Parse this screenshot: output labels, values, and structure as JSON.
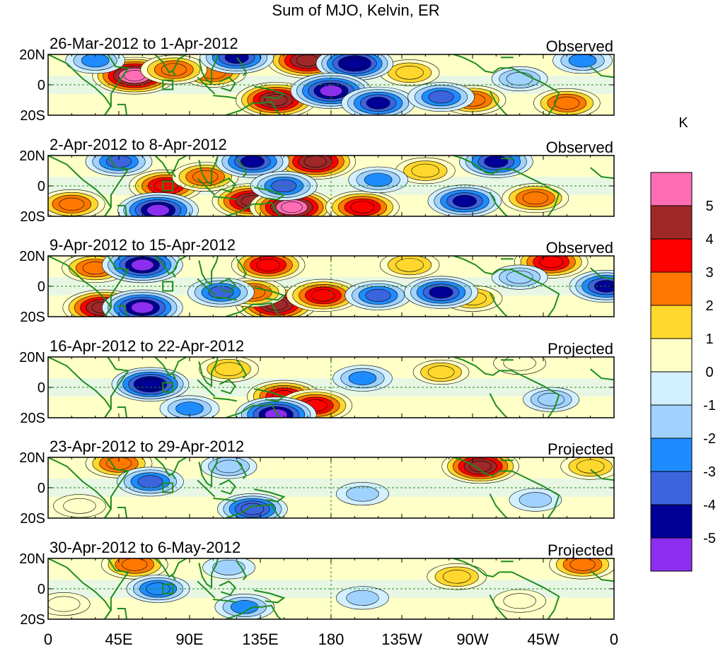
{
  "title": "Sum of MJO, Kelvin, ER",
  "chart_data": {
    "type": "heatmap",
    "title": "Sum of MJO, Kelvin, ER",
    "colorbar": {
      "unit": "K",
      "tick_labels": [
        "5",
        "4",
        "3",
        "2",
        "1",
        "0",
        "-1",
        "-2",
        "-3",
        "-4",
        "-5"
      ],
      "colors_top_to_bottom": [
        "#ff6eb4",
        "#a02828",
        "#ff0000",
        "#ff7800",
        "#ffd72d",
        "#ffffc8",
        "#d2f0ff",
        "#a0d2ff",
        "#1e8cff",
        "#3c64dc",
        "#000096",
        "#8c2ef0"
      ]
    },
    "x_tick_labels": [
      "0",
      "45E",
      "90E",
      "135E",
      "180",
      "135W",
      "90W",
      "45W",
      "0"
    ],
    "y_tick_labels": [
      "20N",
      "0",
      "20S"
    ],
    "panels": [
      {
        "period": "26-Mar-2012 to 1-Apr-2012",
        "kind": "Observed",
        "features": [
          {
            "lon": 55,
            "lat": 6,
            "value": 5.5
          },
          {
            "lon": 105,
            "lat": 8,
            "value": 3
          },
          {
            "lon": 165,
            "lat": 16,
            "value": 5
          },
          {
            "lon": 145,
            "lat": -10,
            "value": 5
          },
          {
            "lon": 80,
            "lat": 10,
            "value": 3
          },
          {
            "lon": 230,
            "lat": 8,
            "value": 2
          },
          {
            "lon": 270,
            "lat": -10,
            "value": 3
          },
          {
            "lon": 330,
            "lat": -12,
            "value": 3
          },
          {
            "lon": 195,
            "lat": 14,
            "value": -4.5
          },
          {
            "lon": 120,
            "lat": 18,
            "value": -4
          },
          {
            "lon": 180,
            "lat": -4,
            "value": -5
          },
          {
            "lon": 210,
            "lat": -12,
            "value": -4
          },
          {
            "lon": 250,
            "lat": -8,
            "value": -3
          },
          {
            "lon": 30,
            "lat": 16,
            "value": -2
          },
          {
            "lon": 340,
            "lat": 16,
            "value": -2
          },
          {
            "lon": 300,
            "lat": 4,
            "value": -1.5
          }
        ]
      },
      {
        "period": "2-Apr-2012 to 8-Apr-2012",
        "kind": "Observed",
        "features": [
          {
            "lon": 75,
            "lat": 0,
            "value": 4
          },
          {
            "lon": 130,
            "lat": -10,
            "value": 5
          },
          {
            "lon": 155,
            "lat": -14,
            "value": 5.5
          },
          {
            "lon": 100,
            "lat": 6,
            "value": 3
          },
          {
            "lon": 170,
            "lat": 16,
            "value": 5
          },
          {
            "lon": 15,
            "lat": -12,
            "value": 3
          },
          {
            "lon": 310,
            "lat": -8,
            "value": 3
          },
          {
            "lon": 240,
            "lat": 10,
            "value": 2
          },
          {
            "lon": 200,
            "lat": -14,
            "value": 4
          },
          {
            "lon": 45,
            "lat": 16,
            "value": -3
          },
          {
            "lon": 130,
            "lat": 16,
            "value": -4
          },
          {
            "lon": 70,
            "lat": -16,
            "value": -5
          },
          {
            "lon": 150,
            "lat": 0,
            "value": -3
          },
          {
            "lon": 265,
            "lat": -10,
            "value": -4
          },
          {
            "lon": 285,
            "lat": 16,
            "value": -4
          },
          {
            "lon": 210,
            "lat": 4,
            "value": -2
          }
        ]
      },
      {
        "period": "9-Apr-2012 to 15-Apr-2012",
        "kind": "Observed",
        "features": [
          {
            "lon": 35,
            "lat": -14,
            "value": 5
          },
          {
            "lon": 145,
            "lat": -12,
            "value": 5
          },
          {
            "lon": 130,
            "lat": -4,
            "value": 3
          },
          {
            "lon": 140,
            "lat": 14,
            "value": 4
          },
          {
            "lon": 175,
            "lat": -6,
            "value": 4
          },
          {
            "lon": 30,
            "lat": 12,
            "value": 3
          },
          {
            "lon": 230,
            "lat": 14,
            "value": 2
          },
          {
            "lon": 320,
            "lat": 16,
            "value": 4
          },
          {
            "lon": 270,
            "lat": -8,
            "value": 2
          },
          {
            "lon": 60,
            "lat": 14,
            "value": -5
          },
          {
            "lon": 110,
            "lat": -4,
            "value": -3
          },
          {
            "lon": 60,
            "lat": -14,
            "value": -5
          },
          {
            "lon": 210,
            "lat": -6,
            "value": -3
          },
          {
            "lon": 250,
            "lat": -4,
            "value": -4
          },
          {
            "lon": 355,
            "lat": 0,
            "value": -4
          },
          {
            "lon": 300,
            "lat": 6,
            "value": -1.5
          }
        ]
      },
      {
        "period": "16-Apr-2012 to 22-Apr-2012",
        "kind": "Projected",
        "features": [
          {
            "lon": 150,
            "lat": -6,
            "value": 4
          },
          {
            "lon": 170,
            "lat": -12,
            "value": 4
          },
          {
            "lon": 115,
            "lat": 12,
            "value": 2
          },
          {
            "lon": 250,
            "lat": 10,
            "value": 1.5
          },
          {
            "lon": 300,
            "lat": 16,
            "value": 1
          },
          {
            "lon": 65,
            "lat": 2,
            "value": -4.5
          },
          {
            "lon": 145,
            "lat": -18,
            "value": -5
          },
          {
            "lon": 200,
            "lat": 6,
            "value": -2
          },
          {
            "lon": 320,
            "lat": -8,
            "value": -1.5
          },
          {
            "lon": 90,
            "lat": -14,
            "value": -2
          }
        ]
      },
      {
        "period": "23-Apr-2012 to 29-Apr-2012",
        "kind": "Projected",
        "features": [
          {
            "lon": 275,
            "lat": 14,
            "value": 4.5
          },
          {
            "lon": 45,
            "lat": 16,
            "value": 3
          },
          {
            "lon": 345,
            "lat": 14,
            "value": 2
          },
          {
            "lon": 20,
            "lat": -12,
            "value": 1
          },
          {
            "lon": 65,
            "lat": 4,
            "value": -3
          },
          {
            "lon": 130,
            "lat": -14,
            "value": -3.5
          },
          {
            "lon": 115,
            "lat": 14,
            "value": -1.5
          },
          {
            "lon": 310,
            "lat": -8,
            "value": -1
          },
          {
            "lon": 200,
            "lat": -4,
            "value": -1
          }
        ]
      },
      {
        "period": "30-Apr-2012 to 6-May-2012",
        "kind": "Projected",
        "features": [
          {
            "lon": 55,
            "lat": 16,
            "value": 3
          },
          {
            "lon": 260,
            "lat": 8,
            "value": 2
          },
          {
            "lon": 340,
            "lat": 16,
            "value": 3
          },
          {
            "lon": 300,
            "lat": -8,
            "value": 1
          },
          {
            "lon": 10,
            "lat": -10,
            "value": 1
          },
          {
            "lon": 70,
            "lat": 0,
            "value": -2.5
          },
          {
            "lon": 125,
            "lat": -12,
            "value": -2
          },
          {
            "lon": 115,
            "lat": 14,
            "value": -1
          },
          {
            "lon": 200,
            "lat": -6,
            "value": -1
          }
        ]
      }
    ]
  }
}
